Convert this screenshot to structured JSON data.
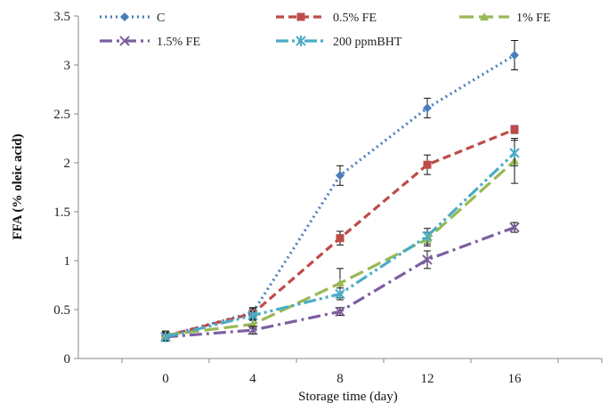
{
  "chart_data": {
    "type": "line",
    "title": "",
    "xlabel": "Storage time (day)",
    "ylabel": "FFA (% oleic acid)",
    "x": [
      0,
      4,
      8,
      12,
      16
    ],
    "xlim": [
      -4,
      20
    ],
    "ylim": [
      0,
      3.5
    ],
    "yticks": [
      "0",
      "0.5",
      "1",
      "1.5",
      "2",
      "2.5",
      "3",
      "3.5"
    ],
    "xticks": [
      "0",
      "4",
      "8",
      "12",
      "16"
    ],
    "grid": false,
    "legend_position": "top",
    "series": [
      {
        "name": "C",
        "values": [
          0.23,
          0.47,
          1.87,
          2.56,
          3.1
        ],
        "errors": [
          0.05,
          0.05,
          0.1,
          0.1,
          0.15
        ],
        "color": "#4A7EBB",
        "marker": "diamond",
        "dash": "2,4"
      },
      {
        "name": "0.5% FE",
        "values": [
          0.23,
          0.46,
          1.23,
          1.98,
          2.34
        ],
        "errors": [
          0.04,
          0.05,
          0.07,
          0.1,
          0.04
        ],
        "color": "#BE4B48",
        "marker": "square",
        "dash": "9,5"
      },
      {
        "name": "1% FE",
        "values": [
          0.24,
          0.35,
          0.77,
          1.22,
          2.02
        ],
        "errors": [
          0.04,
          0.04,
          0.15,
          0.07,
          0.23
        ],
        "color": "#98B954",
        "marker": "triangle",
        "dash": "16,6"
      },
      {
        "name": "1.5% FE",
        "values": [
          0.22,
          0.29,
          0.48,
          1.01,
          1.34
        ],
        "errors": [
          0.04,
          0.04,
          0.04,
          0.09,
          0.05
        ],
        "color": "#7D5FA0",
        "marker": "x",
        "dash": "14,5,3,5"
      },
      {
        "name": "200 ppmBHT",
        "values": [
          0.22,
          0.44,
          0.66,
          1.25,
          2.1
        ],
        "errors": [
          0.04,
          0.04,
          0.06,
          0.08,
          0.13
        ],
        "color": "#4BACC6",
        "marker": "star",
        "dash": "14,4,3,4,3,4"
      }
    ]
  }
}
